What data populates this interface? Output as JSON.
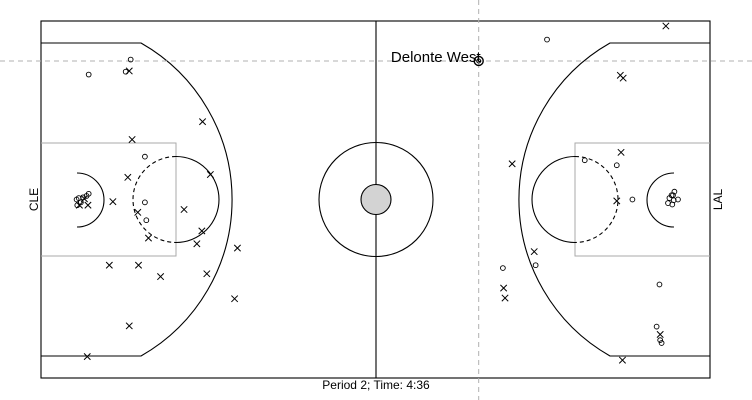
{
  "chart_data": {
    "type": "scatter",
    "home_team": "CLE",
    "away_team": "LAL",
    "caption": "Period 2; Time: 4:36",
    "highlight": {
      "label": "Delonte West",
      "x": 61.5,
      "y": 44.4
    },
    "crosshair": {
      "x": 61.5,
      "y": 44.4
    },
    "xlim": [
      0,
      94
    ],
    "ylim": [
      0,
      50
    ],
    "made_shots": [
      [
        6.7,
        42.5
      ],
      [
        11.9,
        42.9
      ],
      [
        12.6,
        44.6
      ],
      [
        14.6,
        31.0
      ],
      [
        14.6,
        24.6
      ],
      [
        14.8,
        22.1
      ],
      [
        5.3,
        25.2
      ],
      [
        5.0,
        25.0
      ],
      [
        5.6,
        24.6
      ],
      [
        5.9,
        25.3
      ],
      [
        5.1,
        24.2
      ],
      [
        6.7,
        25.8
      ],
      [
        6.4,
        25.5
      ],
      [
        71.1,
        47.4
      ],
      [
        76.4,
        30.5
      ],
      [
        80.9,
        29.8
      ],
      [
        83.1,
        25.0
      ],
      [
        88.6,
        25.6
      ],
      [
        88.9,
        24.9
      ],
      [
        88.1,
        24.5
      ],
      [
        88.7,
        24.3
      ],
      [
        88.3,
        25.2
      ],
      [
        88.8,
        25.6
      ],
      [
        89.5,
        25.0
      ],
      [
        89.0,
        26.1
      ],
      [
        64.9,
        15.4
      ],
      [
        69.5,
        15.8
      ],
      [
        86.9,
        13.1
      ],
      [
        86.5,
        7.2
      ],
      [
        87.0,
        5.3
      ],
      [
        87.2,
        4.9
      ]
    ],
    "missed_shots": [
      [
        12.4,
        43.0
      ],
      [
        22.7,
        35.9
      ],
      [
        12.8,
        33.4
      ],
      [
        12.2,
        28.1
      ],
      [
        13.6,
        23.2
      ],
      [
        10.1,
        24.7
      ],
      [
        6.6,
        24.2
      ],
      [
        5.4,
        24.2
      ],
      [
        6.1,
        25.1
      ],
      [
        15.1,
        19.6
      ],
      [
        22.6,
        20.6
      ],
      [
        21.9,
        18.8
      ],
      [
        27.6,
        18.2
      ],
      [
        23.3,
        14.6
      ],
      [
        9.6,
        15.8
      ],
      [
        13.7,
        15.8
      ],
      [
        16.8,
        14.2
      ],
      [
        27.2,
        11.1
      ],
      [
        12.4,
        7.3
      ],
      [
        6.5,
        3.0
      ],
      [
        20.1,
        23.6
      ],
      [
        23.8,
        28.5
      ],
      [
        87.8,
        49.3
      ],
      [
        81.4,
        42.4
      ],
      [
        81.8,
        42.0
      ],
      [
        66.2,
        30.0
      ],
      [
        81.5,
        31.6
      ],
      [
        69.3,
        17.7
      ],
      [
        80.9,
        24.8
      ],
      [
        65.0,
        12.6
      ],
      [
        65.2,
        11.2
      ],
      [
        81.7,
        2.5
      ],
      [
        87.0,
        6.1
      ]
    ]
  }
}
